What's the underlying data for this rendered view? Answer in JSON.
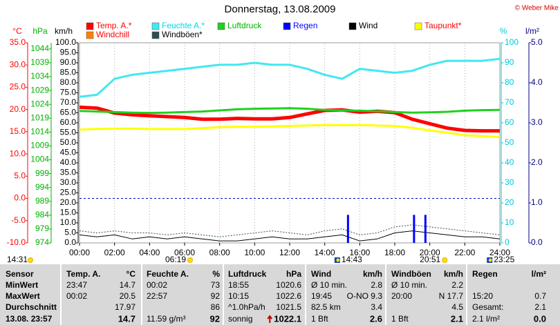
{
  "chart_data": {
    "type": "line",
    "title": "Donnerstag, 13.08.2009",
    "copyright": "© Weber Mike",
    "xlim": [
      0,
      24
    ],
    "xticks": [
      {
        "value": 0,
        "label": "00:00"
      },
      {
        "value": 2,
        "label": "02:00"
      },
      {
        "value": 4,
        "label": "04:00"
      },
      {
        "value": 6,
        "label": "06:00"
      },
      {
        "value": 8,
        "label": "08:00"
      },
      {
        "value": 10,
        "label": "10:00"
      },
      {
        "value": 12,
        "label": "12:00"
      },
      {
        "value": 14,
        "label": "14:00"
      },
      {
        "value": 16,
        "label": "16:00"
      },
      {
        "value": 18,
        "label": "18:00"
      },
      {
        "value": 20,
        "label": "20:00"
      },
      {
        "value": 22,
        "label": "22:00"
      },
      {
        "value": 24,
        "label": "24:00"
      }
    ],
    "grid": true,
    "freezing_line": true,
    "x": [
      0,
      1,
      2,
      3,
      4,
      5,
      6,
      7,
      8,
      9,
      10,
      11,
      12,
      13,
      14,
      15,
      16,
      17,
      18,
      19,
      20,
      21,
      22,
      23,
      24
    ],
    "axes": [
      {
        "label": "°C",
        "color": "#ff0000",
        "lim": [
          -10,
          35
        ],
        "ticks": [
          {
            "value": 35,
            "label": "35.0"
          },
          {
            "value": 30,
            "label": "30.0"
          },
          {
            "value": 25,
            "label": "25.0"
          },
          {
            "value": 20,
            "label": "20.0"
          },
          {
            "value": 15,
            "label": "15.0"
          },
          {
            "value": 10,
            "label": "10.0"
          },
          {
            "value": 5,
            "label": "5.0"
          },
          {
            "value": 0,
            "label": "0.0"
          },
          {
            "value": -5,
            "label": "-5.0"
          },
          {
            "value": -10,
            "label": "-10.0"
          }
        ]
      },
      {
        "label": "hPa",
        "color": "#00b000",
        "lim": [
          974,
          1046.2
        ],
        "ticks": [
          1044,
          1039,
          1034,
          1029,
          1024,
          1019,
          1014,
          1009,
          1004,
          999,
          994,
          989,
          984,
          979,
          974
        ]
      },
      {
        "label": "km/h",
        "color": "#000000",
        "lim": [
          0,
          100
        ],
        "ticks": [
          {
            "value": 100,
            "label": "100.0"
          },
          {
            "value": 95,
            "label": "95.0"
          },
          {
            "value": 90,
            "label": "90.0"
          },
          {
            "value": 85,
            "label": "85.0"
          },
          {
            "value": 80,
            "label": "80.0"
          },
          {
            "value": 75,
            "label": "75.0"
          },
          {
            "value": 70,
            "label": "70.0"
          },
          {
            "value": 65,
            "label": "65.0"
          },
          {
            "value": 60,
            "label": "60.0"
          },
          {
            "value": 55,
            "label": "55.0"
          },
          {
            "value": 50,
            "label": "50.0"
          },
          {
            "value": 45,
            "label": "45.0"
          },
          {
            "value": 40,
            "label": "40.0"
          },
          {
            "value": 35,
            "label": "35.0"
          },
          {
            "value": 30,
            "label": "30.0"
          },
          {
            "value": 25,
            "label": "25.0"
          },
          {
            "value": 20,
            "label": "20.0"
          },
          {
            "value": 15,
            "label": "15.0"
          },
          {
            "value": 10,
            "label": "10.0"
          },
          {
            "value": 5,
            "label": "5.0"
          },
          {
            "value": 0,
            "label": "0.0"
          }
        ]
      },
      {
        "label": "%",
        "color": "#00c8d8",
        "lim": [
          0,
          100
        ],
        "ticks": [
          100,
          90,
          80,
          70,
          60,
          50,
          40,
          30,
          20,
          10,
          0
        ]
      },
      {
        "label": "l/m²",
        "color": "#000080",
        "lim": [
          0,
          5
        ],
        "ticks": [
          {
            "value": 5,
            "label": "5.0"
          },
          {
            "value": 4,
            "label": "4.0"
          },
          {
            "value": 3,
            "label": "3.0"
          },
          {
            "value": 2,
            "label": "2.0"
          },
          {
            "value": 1,
            "label": "1.0"
          },
          {
            "value": 0,
            "label": "0.0"
          }
        ]
      }
    ],
    "series": [
      {
        "name": "Temp. A.*",
        "color": "#ff0000",
        "label_color": "#ff0000",
        "axis": 0,
        "line_width": 5,
        "values": [
          20.5,
          20.3,
          19.2,
          18.8,
          18.6,
          18.4,
          18.2,
          17.8,
          17.8,
          18.0,
          17.9,
          17.9,
          18.2,
          19.0,
          19.8,
          19.9,
          19.4,
          19.6,
          19.3,
          17.8,
          16.8,
          15.8,
          15.3,
          15.2,
          15.2
        ]
      },
      {
        "name": "Feuchte A.*",
        "color": "#40e8f0",
        "label_color": "#00d8e8",
        "axis": 3,
        "line_width": 3,
        "values": [
          73,
          74,
          82,
          84,
          85,
          86,
          87,
          88,
          89,
          89,
          90,
          89,
          89,
          87,
          84,
          82,
          87,
          86,
          85,
          86,
          89,
          91,
          91,
          91,
          92
        ]
      },
      {
        "name": "Luftdruck",
        "color": "#20d020",
        "label_color": "#00b000",
        "axis": 1,
        "line_width": 3,
        "values": [
          1021.6,
          1021.4,
          1021.2,
          1021.0,
          1020.9,
          1021.0,
          1021.2,
          1021.4,
          1021.8,
          1022.2,
          1022.4,
          1022.5,
          1022.6,
          1022.4,
          1022.0,
          1021.8,
          1021.7,
          1021.5,
          1021.2,
          1021.0,
          1021.1,
          1021.3,
          1021.7,
          1021.9,
          1022.0
        ]
      },
      {
        "name": "Regen",
        "color": "#0000ff",
        "label_color": "#0000ff",
        "axis": 4,
        "type": "bar",
        "x": [
          15.33,
          19.1,
          19.75
        ],
        "values": [
          0.7,
          0.7,
          0.7
        ]
      },
      {
        "name": "Wind",
        "color": "#000000",
        "label_color": "#000000",
        "axis": 2,
        "line_width": 1,
        "values": [
          4,
          3,
          4,
          2,
          3,
          2,
          3,
          2,
          1,
          1,
          2,
          3,
          2,
          2,
          3,
          4,
          1,
          2,
          5,
          6,
          5,
          4,
          3,
          3,
          2
        ]
      },
      {
        "name": "Taupunkt*",
        "color": "#ffff00",
        "label_color": "#ff0000",
        "axis": 0,
        "line_width": 3,
        "values": [
          15.5,
          15.6,
          15.7,
          15.7,
          15.6,
          15.6,
          15.6,
          15.8,
          16.0,
          16.1,
          16.1,
          16.2,
          16.3,
          16.4,
          16.5,
          16.5,
          16.5,
          16.4,
          16.3,
          15.9,
          15.3,
          14.8,
          14.2,
          14.0,
          13.8
        ]
      },
      {
        "name": "Windchill",
        "color": "#ff8000",
        "label_color": "#ff0000",
        "axis": 0,
        "line_width": 2,
        "x": [],
        "values": []
      },
      {
        "name": "Windböen*",
        "color": "#2f4f4f",
        "label_color": "#000000",
        "axis": 2,
        "line_width": 1,
        "dashed": true,
        "values": [
          6,
          5,
          6,
          5,
          5,
          4,
          5,
          4,
          3,
          4,
          5,
          6,
          5,
          4,
          6,
          7,
          4,
          5,
          8,
          9,
          8,
          7,
          6,
          5,
          4
        ]
      }
    ],
    "time_markers": [
      {
        "label": "14:31"
      },
      {
        "label": "06:19",
        "value": 6.3167
      },
      {
        "label": "14:43",
        "value": 14.7167
      },
      {
        "label": "20:51",
        "value": 20.85
      },
      {
        "label": "23:25",
        "value": 23.4167
      }
    ]
  },
  "table": {
    "header": [
      "Sensor",
      "Temp. A.",
      "°C",
      "Feuchte A.",
      "%",
      "Luftdruck",
      "hPa",
      "Wind",
      "km/h",
      "Windböen",
      "km/h",
      "Regen",
      "l/m²"
    ],
    "rows": [
      [
        "MinWert",
        "23:47",
        "14.7",
        "00:02",
        "73",
        "18:55",
        "1020.6",
        "Ø 10 min.",
        "2.8",
        "Ø 10 min.",
        "2.2",
        null,
        null
      ],
      [
        "MaxWert",
        "00:02",
        "20.5",
        "22:57",
        "92",
        "10:15",
        "1022.6",
        "19:45",
        "O-NO 9.3",
        "20:00",
        "N 17.7",
        "15:20",
        "0.7"
      ],
      [
        "Durchschnitt",
        null,
        "17.97",
        null,
        "86",
        "^1.0hPa/h",
        "1021.5",
        "82.5 km",
        "3.4",
        null,
        "4.5",
        "Gesamt:",
        "2.1"
      ],
      [
        "13.08. 23:57",
        null,
        "14.7",
        "11.59 g/m³",
        "92",
        "sonnig",
        "1022.1",
        "1 Bft",
        "2.6",
        "1 Bft",
        "2.1",
        "2.1 l/m²",
        "0.0"
      ]
    ]
  }
}
